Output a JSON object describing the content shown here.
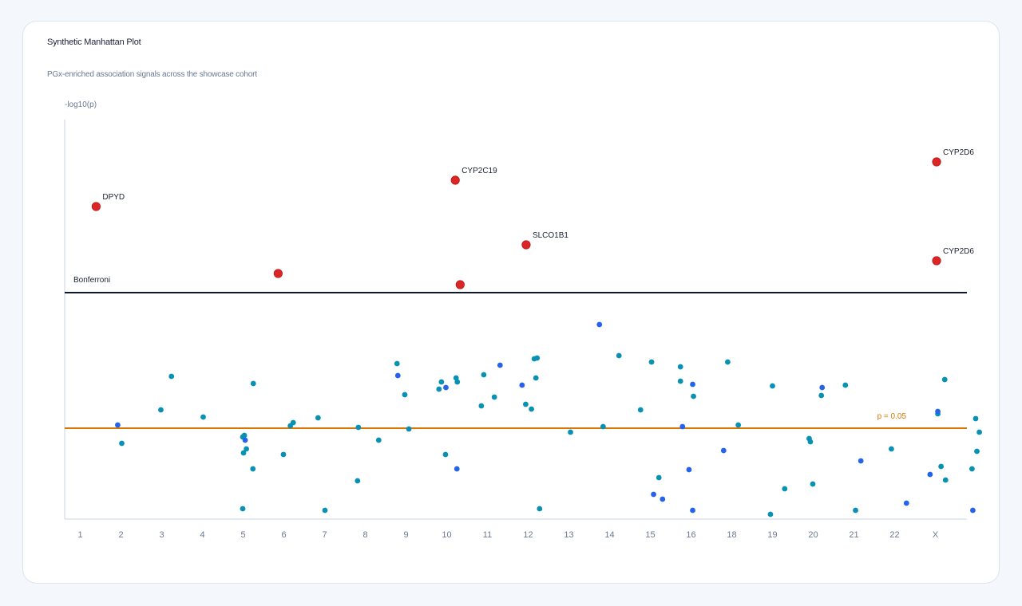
{
  "header": {
    "title": "Synthetic Manhattan Plot",
    "subtitle": "PGx-enriched association signals across the showcase cohort"
  },
  "colors": {
    "chrom_odd": "#2563eb",
    "chrom_even": "#0891b2",
    "highlight": "#dc2626",
    "bonferroni": "#0f172a",
    "suggestive": "#d97706",
    "axis": "#cbd5e1"
  },
  "chart_data": {
    "type": "scatter",
    "title": "Synthetic Manhattan Plot",
    "subtitle": "PGx-enriched association signals across the showcase cohort",
    "ylabel": "-log10(p)",
    "xlabel": "",
    "ylim": [
      0,
      10
    ],
    "grid": false,
    "categories": [
      "1",
      "2",
      "3",
      "4",
      "5",
      "6",
      "7",
      "8",
      "9",
      "10",
      "11",
      "12",
      "13",
      "14",
      "15",
      "16",
      "18",
      "19",
      "20",
      "21",
      "22",
      "X"
    ],
    "thresholds": [
      {
        "name": "Bonferroni",
        "value": 5.68,
        "color": "#0f172a"
      },
      {
        "name": "p = 0.05",
        "value": 2.28,
        "color": "#d97706"
      }
    ],
    "points": [
      {
        "x": 0.92,
        "y": 2.36,
        "c": "b"
      },
      {
        "x": 1.02,
        "y": 1.9,
        "c": "t"
      },
      {
        "x": 1.98,
        "y": 2.74,
        "c": "t"
      },
      {
        "x": 2.24,
        "y": 3.58,
        "c": "t"
      },
      {
        "x": 3.02,
        "y": 2.56,
        "c": "t"
      },
      {
        "x": 3.99,
        "y": 2.06,
        "c": "t"
      },
      {
        "x": 4.03,
        "y": 2.1,
        "c": "t"
      },
      {
        "x": 4.05,
        "y": 1.98,
        "c": "b"
      },
      {
        "x": 4.01,
        "y": 1.66,
        "c": "t"
      },
      {
        "x": 4.08,
        "y": 1.76,
        "c": "t"
      },
      {
        "x": 4.25,
        "y": 3.4,
        "c": "t"
      },
      {
        "x": 4.24,
        "y": 1.26,
        "c": "t"
      },
      {
        "x": 3.99,
        "y": 0.26,
        "c": "t"
      },
      {
        "x": 4.99,
        "y": 1.62,
        "c": "t"
      },
      {
        "x": 5.16,
        "y": 2.34,
        "c": "t"
      },
      {
        "x": 5.23,
        "y": 2.42,
        "c": "t"
      },
      {
        "x": 5.84,
        "y": 2.54,
        "c": "t"
      },
      {
        "x": 6.01,
        "y": 0.22,
        "c": "t"
      },
      {
        "x": 6.83,
        "y": 2.3,
        "c": "t"
      },
      {
        "x": 6.81,
        "y": 0.96,
        "c": "t"
      },
      {
        "x": 7.33,
        "y": 1.98,
        "c": "t"
      },
      {
        "x": 7.78,
        "y": 3.9,
        "c": "t"
      },
      {
        "x": 7.8,
        "y": 3.6,
        "c": "b"
      },
      {
        "x": 7.97,
        "y": 3.12,
        "c": "t"
      },
      {
        "x": 8.07,
        "y": 2.26,
        "c": "t"
      },
      {
        "x": 8.81,
        "y": 3.26,
        "c": "t"
      },
      {
        "x": 8.87,
        "y": 3.44,
        "c": "t"
      },
      {
        "x": 8.98,
        "y": 3.3,
        "c": "b"
      },
      {
        "x": 8.97,
        "y": 1.62,
        "c": "t"
      },
      {
        "x": 9.23,
        "y": 3.54,
        "c": "t"
      },
      {
        "x": 9.26,
        "y": 3.44,
        "c": "t"
      },
      {
        "x": 9.25,
        "y": 1.26,
        "c": "b"
      },
      {
        "x": 9.91,
        "y": 3.62,
        "c": "t"
      },
      {
        "x": 9.85,
        "y": 2.84,
        "c": "t"
      },
      {
        "x": 10.17,
        "y": 3.06,
        "c": "t"
      },
      {
        "x": 10.31,
        "y": 3.86,
        "c": "b"
      },
      {
        "x": 10.85,
        "y": 3.36,
        "c": "b"
      },
      {
        "x": 10.94,
        "y": 2.88,
        "c": "t"
      },
      {
        "x": 11.08,
        "y": 2.76,
        "c": "t"
      },
      {
        "x": 11.15,
        "y": 4.02,
        "c": "t"
      },
      {
        "x": 11.22,
        "y": 4.04,
        "c": "t"
      },
      {
        "x": 11.19,
        "y": 3.54,
        "c": "t"
      },
      {
        "x": 11.28,
        "y": 0.26,
        "c": "t"
      },
      {
        "x": 12.04,
        "y": 2.18,
        "c": "t"
      },
      {
        "x": 12.75,
        "y": 4.88,
        "c": "b"
      },
      {
        "x": 12.84,
        "y": 2.32,
        "c": "t"
      },
      {
        "x": 13.23,
        "y": 4.1,
        "c": "t"
      },
      {
        "x": 13.76,
        "y": 2.74,
        "c": "t"
      },
      {
        "x": 14.03,
        "y": 3.94,
        "c": "t"
      },
      {
        "x": 14.08,
        "y": 0.62,
        "c": "b"
      },
      {
        "x": 14.21,
        "y": 1.04,
        "c": "t"
      },
      {
        "x": 14.3,
        "y": 0.5,
        "c": "b"
      },
      {
        "x": 14.74,
        "y": 3.82,
        "c": "t"
      },
      {
        "x": 14.74,
        "y": 3.46,
        "c": "t"
      },
      {
        "x": 14.79,
        "y": 2.32,
        "c": "b"
      },
      {
        "x": 14.95,
        "y": 1.24,
        "c": "b"
      },
      {
        "x": 15.04,
        "y": 3.38,
        "c": "b"
      },
      {
        "x": 15.06,
        "y": 3.08,
        "c": "t"
      },
      {
        "x": 15.04,
        "y": 0.22,
        "c": "b"
      },
      {
        "x": 15.8,
        "y": 1.72,
        "c": "b"
      },
      {
        "x": 15.9,
        "y": 3.94,
        "c": "t"
      },
      {
        "x": 16.16,
        "y": 2.36,
        "c": "t"
      },
      {
        "x": 16.95,
        "y": 0.12,
        "c": "t"
      },
      {
        "x": 17.0,
        "y": 3.34,
        "c": "t"
      },
      {
        "x": 17.3,
        "y": 0.76,
        "c": "t"
      },
      {
        "x": 17.9,
        "y": 2.02,
        "c": "t"
      },
      {
        "x": 17.93,
        "y": 1.94,
        "c": "t"
      },
      {
        "x": 17.99,
        "y": 0.88,
        "c": "t"
      },
      {
        "x": 18.22,
        "y": 3.3,
        "c": "b"
      },
      {
        "x": 18.2,
        "y": 3.1,
        "c": "t"
      },
      {
        "x": 18.79,
        "y": 3.36,
        "c": "t"
      },
      {
        "x": 19.04,
        "y": 0.22,
        "c": "t"
      },
      {
        "x": 19.17,
        "y": 1.46,
        "c": "b"
      },
      {
        "x": 19.92,
        "y": 1.76,
        "c": "t"
      },
      {
        "x": 20.29,
        "y": 0.4,
        "c": "b"
      },
      {
        "x": 20.87,
        "y": 1.12,
        "c": "b"
      },
      {
        "x": 21.06,
        "y": 2.64,
        "c": "t"
      },
      {
        "x": 21.06,
        "y": 2.7,
        "c": "b"
      },
      {
        "x": 21.14,
        "y": 1.32,
        "c": "t"
      },
      {
        "x": 21.23,
        "y": 3.5,
        "c": "t"
      },
      {
        "x": 21.25,
        "y": 0.98,
        "c": "t"
      },
      {
        "x": 21.99,
        "y": 2.52,
        "c": "t"
      },
      {
        "x": 22.08,
        "y": 2.18,
        "c": "t"
      },
      {
        "x": 22.02,
        "y": 1.7,
        "c": "t"
      },
      {
        "x": 21.9,
        "y": 1.26,
        "c": "t"
      },
      {
        "x": 21.92,
        "y": 0.22,
        "c": "b"
      }
    ],
    "highlights": [
      {
        "x": 0.39,
        "y": 7.84,
        "label": "DPYD"
      },
      {
        "x": 4.86,
        "y": 6.16,
        "label": ""
      },
      {
        "x": 9.21,
        "y": 8.5,
        "label": "CYP2C19"
      },
      {
        "x": 9.33,
        "y": 5.88,
        "label": ""
      },
      {
        "x": 10.95,
        "y": 6.88,
        "label": "SLCO1B1"
      },
      {
        "x": 21.03,
        "y": 8.96,
        "label": "CYP2D6"
      },
      {
        "x": 21.03,
        "y": 6.48,
        "label": "CYP2D6"
      }
    ]
  }
}
